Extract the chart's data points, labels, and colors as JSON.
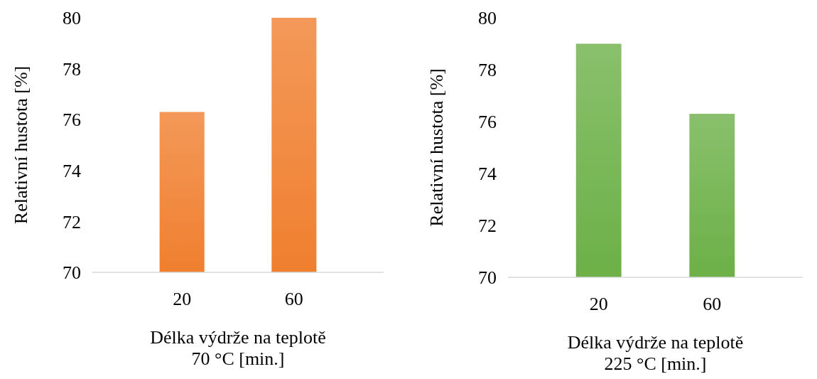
{
  "chart_data": [
    {
      "type": "bar",
      "categories": [
        "20",
        "60"
      ],
      "values": [
        76.3,
        80.0
      ],
      "color": "#f07f2f",
      "ylim": [
        70,
        80
      ],
      "yticks": [
        70,
        72,
        74,
        76,
        78,
        80
      ],
      "ylabel": "Relativní hustota [%]",
      "xlabel": "Délka výdrže na teplotě\n70 °C [min.]",
      "grid": false
    },
    {
      "type": "bar",
      "categories": [
        "20",
        "60"
      ],
      "values": [
        79.0,
        76.3
      ],
      "color": "#6cb047",
      "ylim": [
        70,
        80
      ],
      "yticks": [
        70,
        72,
        74,
        76,
        78,
        80
      ],
      "ylabel": "Relativní hustota [%]",
      "xlabel": "Délka výdrže na teplotě\n225 °C [min.]",
      "grid": false
    }
  ]
}
